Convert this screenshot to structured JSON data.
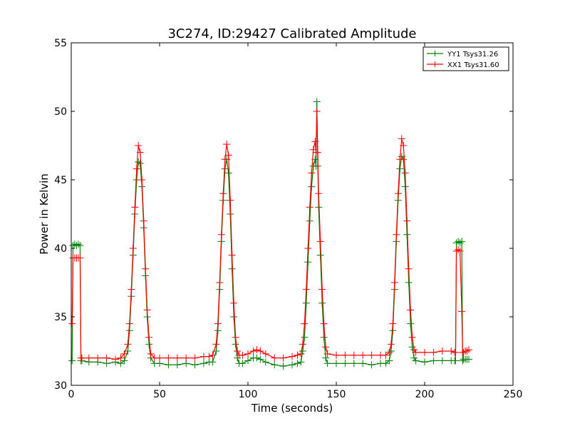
{
  "chart_data": {
    "type": "line",
    "title": "3C274, ID:29427 Calibrated Amplitude",
    "xlabel": "Time (seconds)",
    "ylabel": "Power in Kelvin",
    "xlim": [
      0,
      250
    ],
    "ylim": [
      30,
      55
    ],
    "xticks": [
      "0",
      "50",
      "100",
      "150",
      "200",
      "250"
    ],
    "yticks": [
      "30",
      "35",
      "40",
      "45",
      "50",
      "55"
    ],
    "grid": false,
    "legend_position": "top-right",
    "marker": "plus",
    "series": [
      {
        "name": "YY1 Tsys31.26",
        "color": "#008000",
        "segments": [
          [
            [
              0.5,
              31.8
            ],
            [
              1,
              40.2
            ],
            [
              2,
              40.3
            ],
            [
              3,
              40.2
            ],
            [
              4,
              40.3
            ],
            [
              5,
              40.2
            ],
            [
              5.5,
              31.8
            ]
          ],
          [
            [
              6,
              31.8
            ],
            [
              10,
              31.7
            ],
            [
              15,
              31.7
            ],
            [
              20,
              31.6
            ],
            [
              25,
              31.7
            ],
            [
              28,
              31.6
            ],
            [
              30,
              31.8
            ],
            [
              32,
              32.5
            ],
            [
              33,
              34.0
            ],
            [
              34,
              36.5
            ],
            [
              35,
              39.5
            ],
            [
              36,
              42.5
            ],
            [
              37,
              45.0
            ],
            [
              38,
              46.3
            ],
            [
              39,
              46.2
            ],
            [
              40,
              44.5
            ],
            [
              41,
              41.5
            ],
            [
              42,
              38.0
            ],
            [
              43,
              35.0
            ],
            [
              44,
              33.0
            ],
            [
              45,
              32.0
            ],
            [
              47,
              31.6
            ],
            [
              50,
              31.6
            ],
            [
              55,
              31.5
            ],
            [
              60,
              31.5
            ],
            [
              65,
              31.6
            ],
            [
              70,
              31.5
            ],
            [
              75,
              31.6
            ],
            [
              78,
              31.7
            ],
            [
              80,
              31.7
            ],
            [
              82,
              32.5
            ],
            [
              83,
              34.0
            ],
            [
              84,
              37.0
            ],
            [
              85,
              40.5
            ],
            [
              86,
              43.5
            ],
            [
              87,
              45.8
            ],
            [
              88,
              46.5
            ],
            [
              89,
              45.5
            ],
            [
              90,
              42.5
            ],
            [
              91,
              38.5
            ],
            [
              92,
              35.0
            ],
            [
              93,
              33.0
            ],
            [
              94,
              32.0
            ],
            [
              95,
              31.6
            ],
            [
              97,
              31.6
            ],
            [
              100,
              31.8
            ],
            [
              103,
              32.0
            ],
            [
              105,
              32.0
            ],
            [
              107,
              31.9
            ],
            [
              110,
              31.7
            ],
            [
              115,
              31.5
            ],
            [
              120,
              31.4
            ],
            [
              125,
              31.5
            ],
            [
              128,
              31.6
            ],
            [
              130,
              31.7
            ],
            [
              131,
              32.5
            ],
            [
              132,
              33.5
            ],
            [
              133,
              36.0
            ],
            [
              134,
              39.0
            ],
            [
              135,
              42.0
            ],
            [
              136,
              44.5
            ],
            [
              137,
              46.0
            ],
            [
              138,
              46.5
            ],
            [
              138.5,
              46.0
            ],
            [
              139,
              50.7
            ],
            [
              139.5,
              46.0
            ],
            [
              140,
              43.0
            ],
            [
              141,
              39.5
            ],
            [
              142,
              36.0
            ],
            [
              143,
              33.5
            ],
            [
              144,
              32.0
            ],
            [
              145,
              31.6
            ],
            [
              150,
              31.6
            ],
            [
              155,
              31.6
            ],
            [
              160,
              31.6
            ],
            [
              165,
              31.6
            ],
            [
              170,
              31.5
            ],
            [
              175,
              31.6
            ],
            [
              178,
              31.6
            ],
            [
              180,
              31.8
            ],
            [
              181,
              32.5
            ],
            [
              182,
              34.0
            ],
            [
              183,
              37.0
            ],
            [
              184,
              40.5
            ],
            [
              185,
              43.5
            ],
            [
              186,
              45.8
            ],
            [
              187,
              46.7
            ],
            [
              188,
              46.5
            ],
            [
              189,
              44.5
            ],
            [
              190,
              41.0
            ],
            [
              191,
              37.5
            ],
            [
              192,
              34.5
            ],
            [
              193,
              32.8
            ],
            [
              194,
              32.0
            ],
            [
              195,
              31.8
            ],
            [
              200,
              31.7
            ],
            [
              205,
              31.8
            ],
            [
              210,
              31.8
            ],
            [
              215,
              31.8
            ],
            [
              217,
              31.8
            ]
          ],
          [
            [
              217.5,
              31.8
            ],
            [
              218,
              40.4
            ],
            [
              219,
              40.5
            ],
            [
              220,
              40.4
            ],
            [
              221,
              40.5
            ],
            [
              221.5,
              31.8
            ]
          ],
          [
            [
              222,
              31.9
            ],
            [
              223,
              31.9
            ],
            [
              224,
              31.9
            ],
            [
              225,
              31.9
            ]
          ]
        ]
      },
      {
        "name": "XX1 Tsys31.60",
        "color": "#ff0000",
        "segments": [
          [
            [
              0.5,
              34.5
            ],
            [
              1,
              39.3
            ],
            [
              2,
              39.3
            ],
            [
              3,
              39.3
            ],
            [
              4,
              39.3
            ],
            [
              5,
              39.3
            ],
            [
              5.5,
              32.0
            ]
          ],
          [
            [
              6,
              32.0
            ],
            [
              10,
              32.0
            ],
            [
              15,
              32.0
            ],
            [
              20,
              32.0
            ],
            [
              25,
              31.9
            ],
            [
              28,
              32.0
            ],
            [
              30,
              32.3
            ],
            [
              32,
              33.0
            ],
            [
              33,
              34.5
            ],
            [
              34,
              37.0
            ],
            [
              35,
              40.0
            ],
            [
              36,
              43.0
            ],
            [
              37,
              45.8
            ],
            [
              38,
              47.5
            ],
            [
              39,
              47.0
            ],
            [
              40,
              45.0
            ],
            [
              41,
              42.0
            ],
            [
              42,
              38.5
            ],
            [
              43,
              35.5
            ],
            [
              44,
              33.5
            ],
            [
              45,
              32.3
            ],
            [
              47,
              32.0
            ],
            [
              50,
              32.0
            ],
            [
              55,
              32.0
            ],
            [
              60,
              32.0
            ],
            [
              65,
              32.0
            ],
            [
              70,
              32.0
            ],
            [
              75,
              32.1
            ],
            [
              78,
              32.1
            ],
            [
              80,
              32.2
            ],
            [
              82,
              33.0
            ],
            [
              83,
              34.5
            ],
            [
              84,
              37.5
            ],
            [
              85,
              41.0
            ],
            [
              86,
              44.0
            ],
            [
              87,
              46.5
            ],
            [
              88,
              47.6
            ],
            [
              89,
              46.8
            ],
            [
              90,
              43.5
            ],
            [
              91,
              39.5
            ],
            [
              92,
              36.0
            ],
            [
              93,
              33.5
            ],
            [
              94,
              32.5
            ],
            [
              95,
              32.2
            ],
            [
              97,
              32.2
            ],
            [
              100,
              32.3
            ],
            [
              103,
              32.5
            ],
            [
              105,
              32.6
            ],
            [
              107,
              32.5
            ],
            [
              110,
              32.3
            ],
            [
              115,
              32.0
            ],
            [
              120,
              32.0
            ],
            [
              125,
              32.1
            ],
            [
              128,
              32.2
            ],
            [
              130,
              32.3
            ],
            [
              131,
              33.0
            ],
            [
              132,
              34.5
            ],
            [
              133,
              37.0
            ],
            [
              134,
              40.0
            ],
            [
              135,
              43.0
            ],
            [
              136,
              45.5
            ],
            [
              137,
              47.2
            ],
            [
              138,
              47.8
            ],
            [
              138.5,
              47.0
            ],
            [
              139,
              50.0
            ],
            [
              139.5,
              47.0
            ],
            [
              140,
              44.0
            ],
            [
              141,
              40.5
            ],
            [
              142,
              37.0
            ],
            [
              143,
              34.5
            ],
            [
              144,
              32.8
            ],
            [
              145,
              32.3
            ],
            [
              150,
              32.2
            ],
            [
              155,
              32.2
            ],
            [
              160,
              32.2
            ],
            [
              165,
              32.2
            ],
            [
              170,
              32.2
            ],
            [
              175,
              32.2
            ],
            [
              178,
              32.2
            ],
            [
              180,
              32.4
            ],
            [
              181,
              33.0
            ],
            [
              182,
              34.5
            ],
            [
              183,
              37.5
            ],
            [
              184,
              41.0
            ],
            [
              185,
              44.0
            ],
            [
              186,
              46.5
            ],
            [
              187,
              48.0
            ],
            [
              188,
              47.5
            ],
            [
              189,
              45.5
            ],
            [
              190,
              42.0
            ],
            [
              191,
              38.5
            ],
            [
              192,
              35.5
            ],
            [
              193,
              33.5
            ],
            [
              194,
              32.6
            ],
            [
              195,
              32.4
            ],
            [
              200,
              32.4
            ],
            [
              205,
              32.4
            ],
            [
              210,
              32.5
            ],
            [
              215,
              32.5
            ],
            [
              217,
              32.4
            ]
          ],
          [
            [
              217.5,
              32.4
            ],
            [
              218,
              39.8
            ],
            [
              219,
              39.9
            ],
            [
              220,
              39.8
            ],
            [
              221,
              35.4
            ],
            [
              221.5,
              32.4
            ]
          ],
          [
            [
              222,
              32.4
            ],
            [
              223,
              32.5
            ],
            [
              224,
              32.5
            ],
            [
              225,
              32.6
            ]
          ]
        ]
      }
    ]
  }
}
